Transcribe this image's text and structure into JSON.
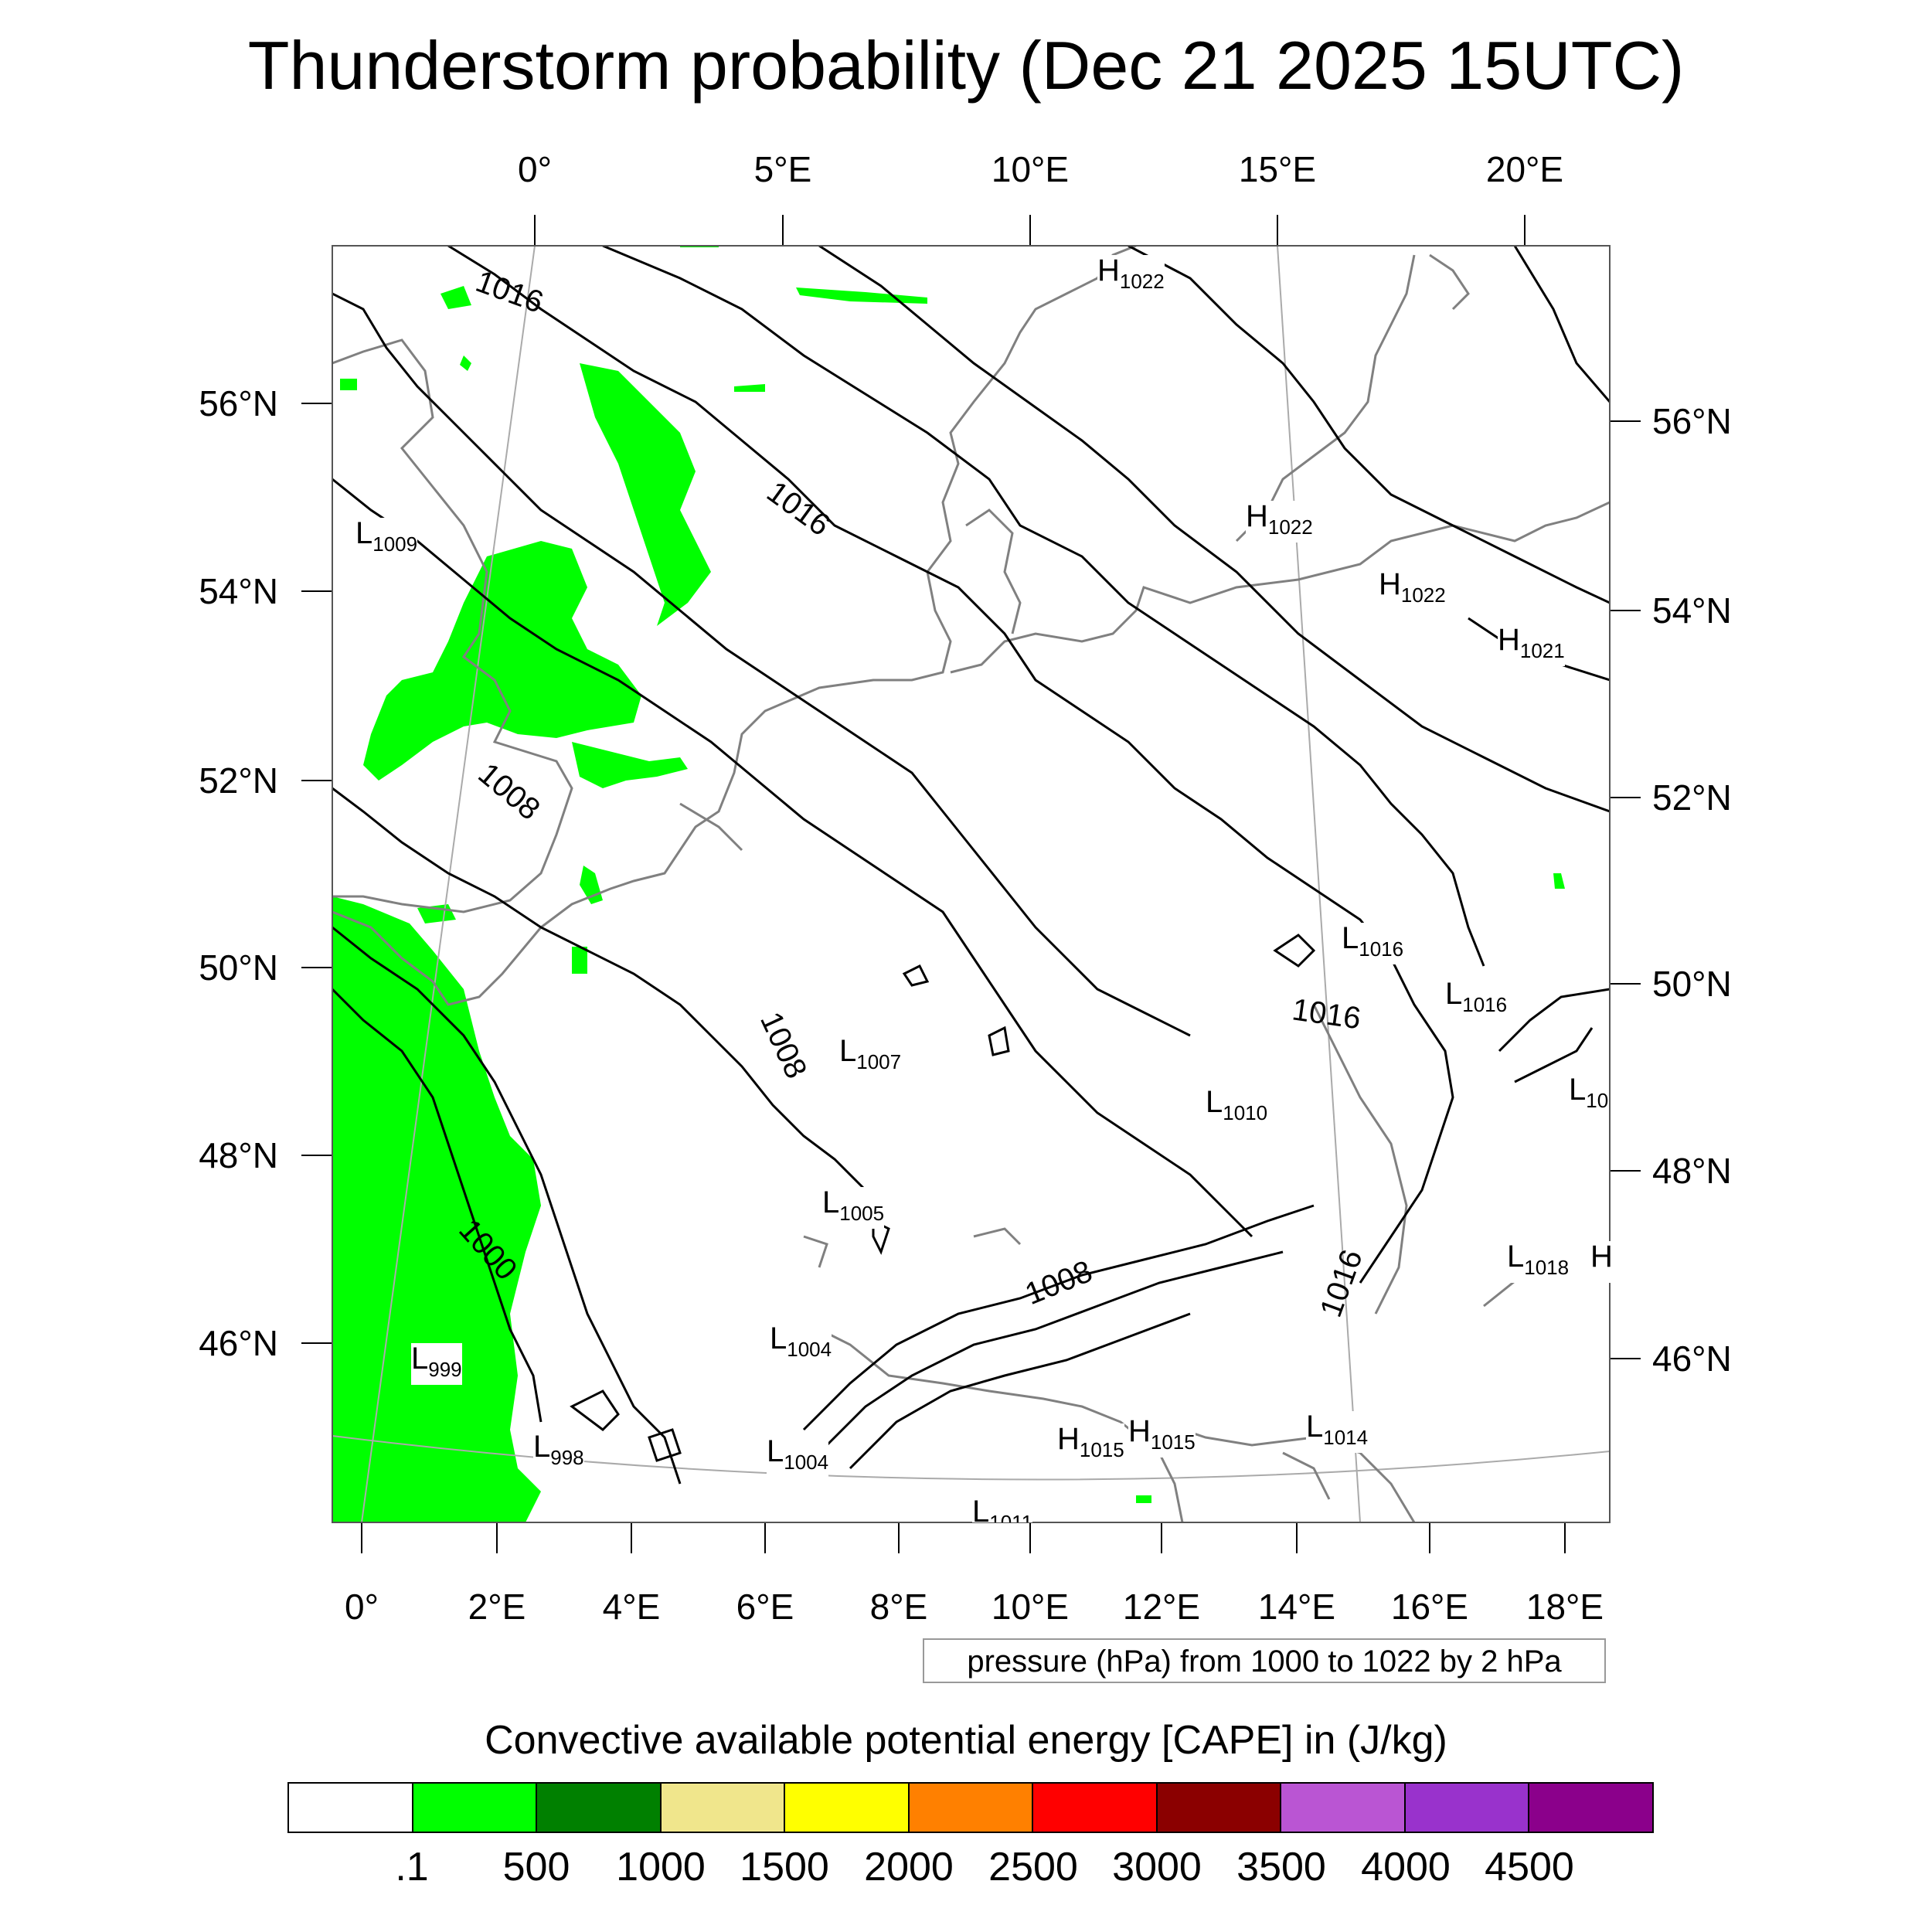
{
  "title": "Thunderstorm probability (Dec 21 2025 15UTC)",
  "top_longitude_ticks": [
    "0°",
    "5°E",
    "10°E",
    "15°E",
    "20°E"
  ],
  "bottom_longitude_ticks": [
    "0°",
    "2°E",
    "4°E",
    "6°E",
    "8°E",
    "10°E",
    "12°E",
    "14°E",
    "16°E",
    "18°E"
  ],
  "left_latitude_ticks": [
    "56°N",
    "54°N",
    "52°N",
    "50°N",
    "48°N",
    "46°N"
  ],
  "right_latitude_ticks": [
    "56°N",
    "54°N",
    "52°N",
    "50°N",
    "48°N",
    "46°N"
  ],
  "contour_info": "pressure (hPa) from 1000 to 1022 by 2 hPa",
  "isobar_labels": [
    "1016",
    "1016",
    "1008",
    "1008",
    "1000",
    "1008",
    "1016",
    "1016"
  ],
  "pressure_centers": [
    {
      "type": "H",
      "value": "1022"
    },
    {
      "type": "L",
      "value": "1009"
    },
    {
      "type": "H",
      "value": "1022"
    },
    {
      "type": "H",
      "value": "1022"
    },
    {
      "type": "H",
      "value": "1021"
    },
    {
      "type": "L",
      "value": "1016"
    },
    {
      "type": "L",
      "value": "1016"
    },
    {
      "type": "L",
      "value": "1007"
    },
    {
      "type": "L",
      "value": "1010"
    },
    {
      "type": "L",
      "value": "10"
    },
    {
      "type": "L",
      "value": "1005"
    },
    {
      "type": "L",
      "value": "1018"
    },
    {
      "type": "H",
      "value": ""
    },
    {
      "type": "L",
      "value": "1004"
    },
    {
      "type": "L",
      "value": "999"
    },
    {
      "type": "L",
      "value": "998"
    },
    {
      "type": "L",
      "value": "1004"
    },
    {
      "type": "H",
      "value": "1015"
    },
    {
      "type": "H",
      "value": "1015"
    },
    {
      "type": "L",
      "value": "1014"
    },
    {
      "type": "L",
      "value": "1011"
    }
  ],
  "colorbar": {
    "title": "Convective available potential energy [CAPE] in (J/kg)",
    "colors": [
      "#ffffff",
      "#00ff00",
      "#008000",
      "#f0e68c",
      "#ffff00",
      "#ff8000",
      "#ff0000",
      "#8b0000",
      "#ba55d3",
      "#9932cc",
      "#8b008b"
    ],
    "labels": [
      ".1",
      "500",
      "1000",
      "1500",
      "2000",
      "2500",
      "3000",
      "3500",
      "4000",
      "4500"
    ]
  },
  "colors": {
    "cape_low": "#00ff00",
    "isobar": "#000000",
    "coastline": "#808080",
    "graticule": "#aaaaaa"
  }
}
